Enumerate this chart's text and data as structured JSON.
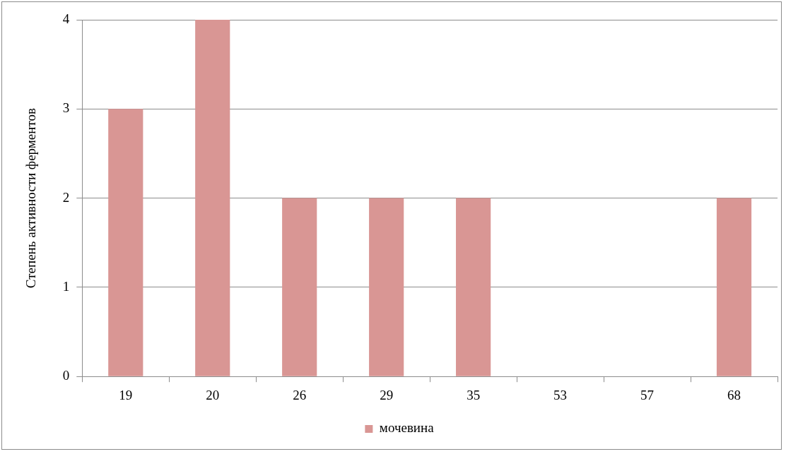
{
  "chart_data": {
    "type": "bar",
    "ylabel": "Степень активности ферментов",
    "categories": [
      "19",
      "20",
      "26",
      "29",
      "35",
      "53",
      "57",
      "68"
    ],
    "series": [
      {
        "name": "мочевина",
        "color": "#d99694",
        "values": [
          3,
          4,
          2,
          2,
          2,
          0,
          0,
          2
        ]
      }
    ],
    "ylim": [
      0,
      4
    ],
    "yticks": [
      0,
      1,
      2,
      3,
      4
    ],
    "grid": "y",
    "legend": "bottom"
  }
}
